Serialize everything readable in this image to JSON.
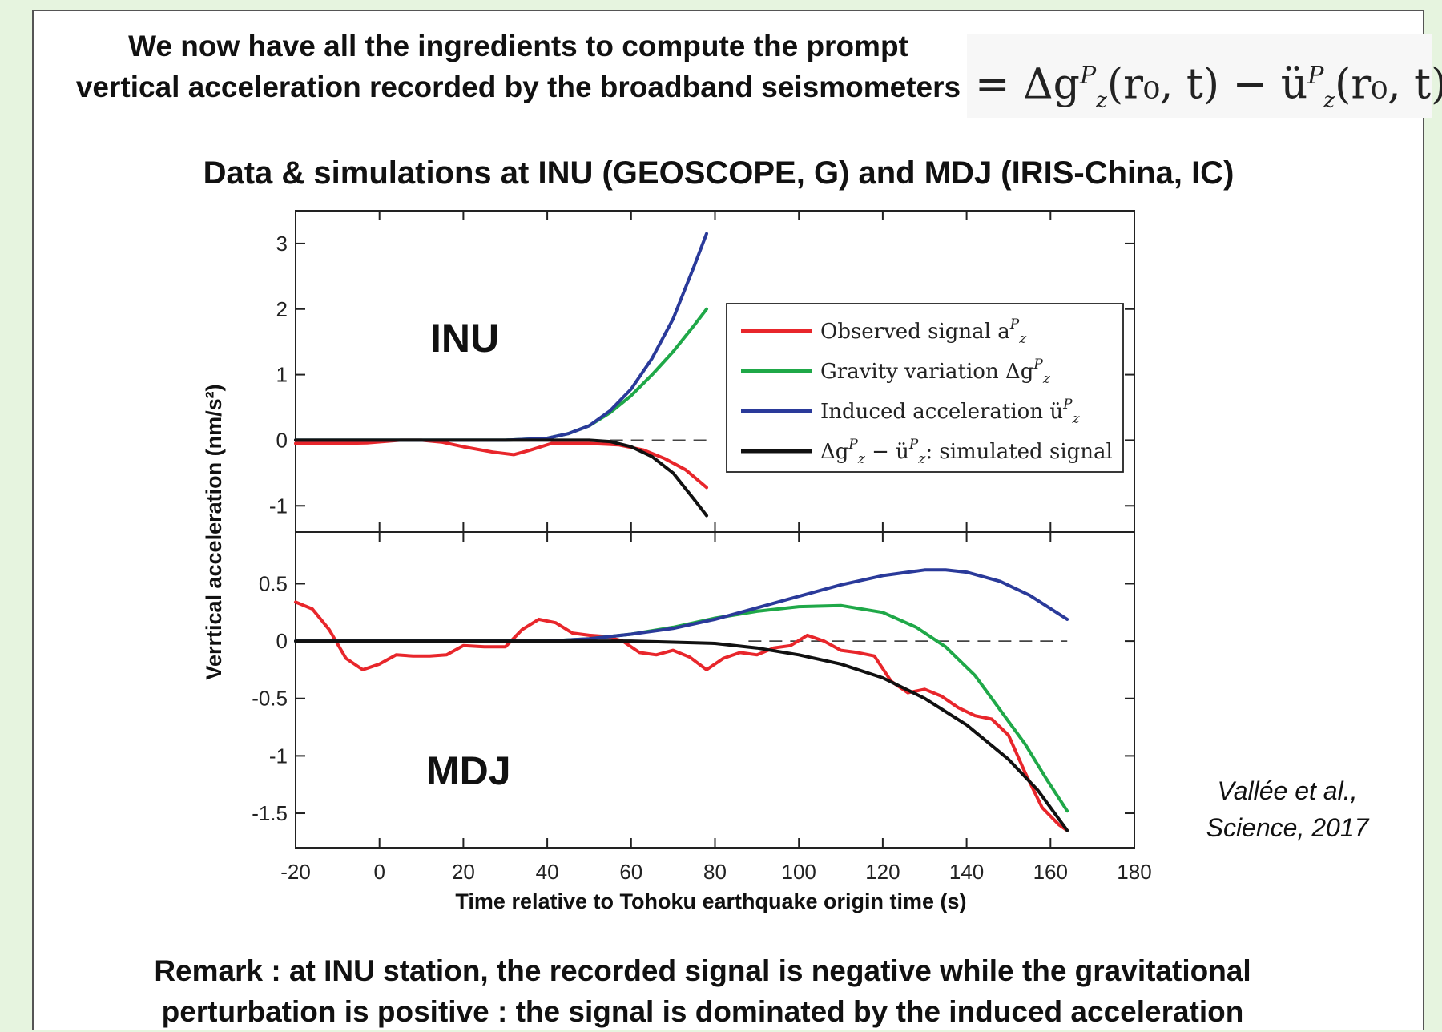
{
  "intro_line1": "We now have all the ingredients to compute the prompt",
  "intro_line2": "vertical acceleration recorded by the broadband seismometers",
  "formula": {
    "lhs": "= Δg",
    "lhs_sup": "P",
    "lhs_sub": "z",
    "lhs_args": "(r₀, t) − ü",
    "rhs_sup": "P",
    "rhs_sub": "z",
    "rhs_args": "(r₀, t)"
  },
  "subtitle": "Data & simulations  at INU (GEOSCOPE, G) and MDJ (IRIS-China, IC)",
  "citation_line1": "Vallée et al.,",
  "citation_line2": "Science, 2017",
  "remark_line1": "Remark : at INU station, the recorded signal is negative while the gravitational",
  "remark_line2": "perturbation is positive : the signal is dominated by the induced acceleration",
  "chart_data": {
    "type": "line",
    "xlabel": "Time relative to Tohoku earthquake origin time (s)",
    "ylabel": "Verrtical acceleration (nm/s²)",
    "xlim": [
      -20,
      180
    ],
    "xticks": [
      "-20",
      "0",
      "20",
      "40",
      "60",
      "80",
      "100",
      "120",
      "140",
      "160",
      "180"
    ],
    "legend": {
      "placement": "upper-right of top panel",
      "entries": [
        {
          "label": "Observed signal a",
          "sup": "P",
          "sub": "z",
          "suffix": "",
          "color": "#e8262b"
        },
        {
          "label": "Gravity variation Δg",
          "sup": "P",
          "sub": "z",
          "suffix": "",
          "color": "#1fa848"
        },
        {
          "label": "Induced acceleration ü",
          "sup": "P",
          "sub": "z",
          "suffix": "",
          "color": "#2a3a9a"
        },
        {
          "label": "Δg",
          "sup": "P",
          "sub": "z",
          "suffix": " − ü",
          "sup2": "P",
          "sub2": "z",
          "suffix2": ": simulated signal",
          "color": "#111111"
        }
      ]
    },
    "panels": [
      {
        "station": "INU",
        "ylim": [
          -1.4,
          3.5
        ],
        "yticks": [
          3,
          2,
          1,
          0,
          -1
        ],
        "ytick_labels": [
          "3",
          "2",
          "1",
          "0",
          "-1"
        ],
        "zero_dashed_range": [
          55,
          78
        ],
        "series": [
          {
            "name": "Observed signal",
            "color": "#e8262b",
            "points": [
              [
                -20,
                -0.05
              ],
              [
                -10,
                -0.05
              ],
              [
                -3,
                -0.04
              ],
              [
                5,
                0
              ],
              [
                10,
                0
              ],
              [
                15,
                -0.03
              ],
              [
                20,
                -0.1
              ],
              [
                27,
                -0.18
              ],
              [
                32,
                -0.22
              ],
              [
                36,
                -0.15
              ],
              [
                41,
                -0.05
              ],
              [
                50,
                -0.05
              ],
              [
                57,
                -0.07
              ],
              [
                63,
                -0.15
              ],
              [
                68,
                -0.28
              ],
              [
                73,
                -0.45
              ],
              [
                78,
                -0.72
              ]
            ]
          },
          {
            "name": "Gravity variation",
            "color": "#1fa848",
            "points": [
              [
                -20,
                0
              ],
              [
                20,
                0
              ],
              [
                30,
                0
              ],
              [
                40,
                0.03
              ],
              [
                45,
                0.1
              ],
              [
                50,
                0.22
              ],
              [
                55,
                0.42
              ],
              [
                60,
                0.68
              ],
              [
                65,
                1.0
              ],
              [
                70,
                1.35
              ],
              [
                75,
                1.75
              ],
              [
                78,
                2.0
              ]
            ]
          },
          {
            "name": "Induced acceleration",
            "color": "#2a3a9a",
            "points": [
              [
                -20,
                0
              ],
              [
                20,
                0
              ],
              [
                30,
                0
              ],
              [
                40,
                0.03
              ],
              [
                45,
                0.1
              ],
              [
                50,
                0.22
              ],
              [
                55,
                0.45
              ],
              [
                60,
                0.78
              ],
              [
                65,
                1.25
              ],
              [
                70,
                1.85
              ],
              [
                75,
                2.65
              ],
              [
                78,
                3.15
              ]
            ]
          },
          {
            "name": "Simulated signal",
            "color": "#111111",
            "points": [
              [
                -20,
                0
              ],
              [
                20,
                0
              ],
              [
                40,
                0
              ],
              [
                50,
                0
              ],
              [
                55,
                -0.02
              ],
              [
                60,
                -0.1
              ],
              [
                65,
                -0.25
              ],
              [
                70,
                -0.5
              ],
              [
                75,
                -0.9
              ],
              [
                78,
                -1.15
              ]
            ]
          }
        ]
      },
      {
        "station": "MDJ",
        "ylim": [
          -1.8,
          0.95
        ],
        "yticks": [
          0.5,
          0,
          -0.5,
          -1,
          -1.5
        ],
        "ytick_labels": [
          "0.5",
          "0",
          "-0.5",
          "-1",
          "-1.5"
        ],
        "zero_dashed_range": [
          88,
          164
        ],
        "series": [
          {
            "name": "Observed signal",
            "color": "#e8262b",
            "points": [
              [
                -20,
                0.34
              ],
              [
                -16,
                0.28
              ],
              [
                -12,
                0.1
              ],
              [
                -8,
                -0.15
              ],
              [
                -4,
                -0.25
              ],
              [
                0,
                -0.2
              ],
              [
                4,
                -0.12
              ],
              [
                8,
                -0.13
              ],
              [
                12,
                -0.13
              ],
              [
                16,
                -0.12
              ],
              [
                20,
                -0.04
              ],
              [
                25,
                -0.05
              ],
              [
                30,
                -0.05
              ],
              [
                34,
                0.1
              ],
              [
                38,
                0.19
              ],
              [
                42,
                0.16
              ],
              [
                46,
                0.07
              ],
              [
                50,
                0.05
              ],
              [
                54,
                0.04
              ],
              [
                58,
                0.0
              ],
              [
                62,
                -0.1
              ],
              [
                66,
                -0.12
              ],
              [
                70,
                -0.08
              ],
              [
                74,
                -0.14
              ],
              [
                78,
                -0.25
              ],
              [
                82,
                -0.15
              ],
              [
                86,
                -0.1
              ],
              [
                90,
                -0.12
              ],
              [
                94,
                -0.06
              ],
              [
                98,
                -0.04
              ],
              [
                102,
                0.05
              ],
              [
                106,
                0.0
              ],
              [
                110,
                -0.08
              ],
              [
                114,
                -0.1
              ],
              [
                118,
                -0.13
              ],
              [
                122,
                -0.35
              ],
              [
                126,
                -0.45
              ],
              [
                130,
                -0.42
              ],
              [
                134,
                -0.48
              ],
              [
                138,
                -0.58
              ],
              [
                142,
                -0.65
              ],
              [
                146,
                -0.68
              ],
              [
                150,
                -0.82
              ],
              [
                154,
                -1.15
              ],
              [
                158,
                -1.45
              ],
              [
                162,
                -1.6
              ],
              [
                164,
                -1.65
              ]
            ]
          },
          {
            "name": "Gravity variation",
            "color": "#1fa848",
            "points": [
              [
                -20,
                0
              ],
              [
                40,
                0
              ],
              [
                50,
                0.02
              ],
              [
                60,
                0.06
              ],
              [
                70,
                0.12
              ],
              [
                80,
                0.2
              ],
              [
                90,
                0.26
              ],
              [
                100,
                0.3
              ],
              [
                110,
                0.31
              ],
              [
                120,
                0.25
              ],
              [
                128,
                0.12
              ],
              [
                135,
                -0.05
              ],
              [
                142,
                -0.3
              ],
              [
                148,
                -0.6
              ],
              [
                154,
                -0.9
              ],
              [
                159,
                -1.2
              ],
              [
                164,
                -1.48
              ]
            ]
          },
          {
            "name": "Induced acceleration",
            "color": "#2a3a9a",
            "points": [
              [
                -20,
                0
              ],
              [
                40,
                0
              ],
              [
                50,
                0.02
              ],
              [
                60,
                0.06
              ],
              [
                70,
                0.11
              ],
              [
                80,
                0.19
              ],
              [
                90,
                0.29
              ],
              [
                100,
                0.39
              ],
              [
                110,
                0.49
              ],
              [
                120,
                0.57
              ],
              [
                130,
                0.62
              ],
              [
                135,
                0.62
              ],
              [
                140,
                0.6
              ],
              [
                148,
                0.52
              ],
              [
                155,
                0.4
              ],
              [
                164,
                0.19
              ]
            ]
          },
          {
            "name": "Simulated signal",
            "color": "#111111",
            "points": [
              [
                -20,
                0
              ],
              [
                40,
                0
              ],
              [
                60,
                0
              ],
              [
                70,
                -0.01
              ],
              [
                80,
                -0.02
              ],
              [
                90,
                -0.06
              ],
              [
                100,
                -0.12
              ],
              [
                110,
                -0.2
              ],
              [
                120,
                -0.32
              ],
              [
                130,
                -0.5
              ],
              [
                140,
                -0.73
              ],
              [
                150,
                -1.03
              ],
              [
                157,
                -1.3
              ],
              [
                164,
                -1.65
              ]
            ]
          }
        ]
      }
    ]
  }
}
